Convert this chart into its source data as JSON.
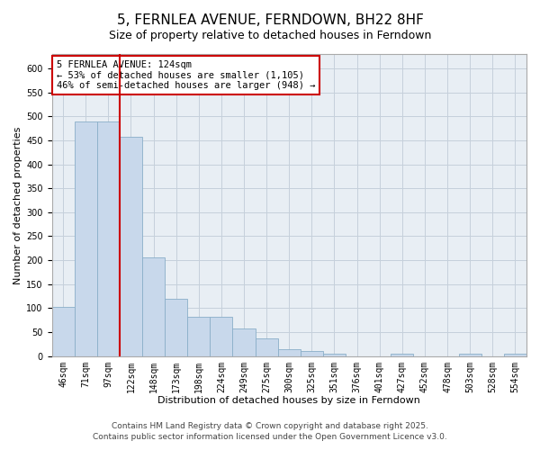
{
  "title": "5, FERNLEA AVENUE, FERNDOWN, BH22 8HF",
  "subtitle": "Size of property relative to detached houses in Ferndown",
  "xlabel": "Distribution of detached houses by size in Ferndown",
  "ylabel": "Number of detached properties",
  "categories": [
    "46sqm",
    "71sqm",
    "97sqm",
    "122sqm",
    "148sqm",
    "173sqm",
    "198sqm",
    "224sqm",
    "249sqm",
    "275sqm",
    "300sqm",
    "325sqm",
    "351sqm",
    "376sqm",
    "401sqm",
    "427sqm",
    "452sqm",
    "478sqm",
    "503sqm",
    "528sqm",
    "554sqm"
  ],
  "values": [
    103,
    490,
    490,
    457,
    205,
    120,
    82,
    82,
    57,
    37,
    15,
    10,
    5,
    0,
    0,
    5,
    0,
    0,
    5,
    0,
    5
  ],
  "bar_color": "#c8d8eb",
  "bar_edge_color": "#8aaec8",
  "vline_color": "#cc0000",
  "vline_x": 2.5,
  "annotation_text": "5 FERNLEA AVENUE: 124sqm\n← 53% of detached houses are smaller (1,105)\n46% of semi-detached houses are larger (948) →",
  "annotation_box_color": "#ffffff",
  "annotation_box_edge": "#cc0000",
  "ylim": [
    0,
    630
  ],
  "yticks": [
    0,
    50,
    100,
    150,
    200,
    250,
    300,
    350,
    400,
    450,
    500,
    550,
    600
  ],
  "footer1": "Contains HM Land Registry data © Crown copyright and database right 2025.",
  "footer2": "Contains public sector information licensed under the Open Government Licence v3.0.",
  "plot_bg_color": "#e8eef4",
  "grid_color": "#c5d0db",
  "title_fontsize": 11,
  "subtitle_fontsize": 9,
  "axis_fontsize": 8,
  "tick_fontsize": 7,
  "footer_fontsize": 6.5,
  "ann_fontsize": 7.5
}
